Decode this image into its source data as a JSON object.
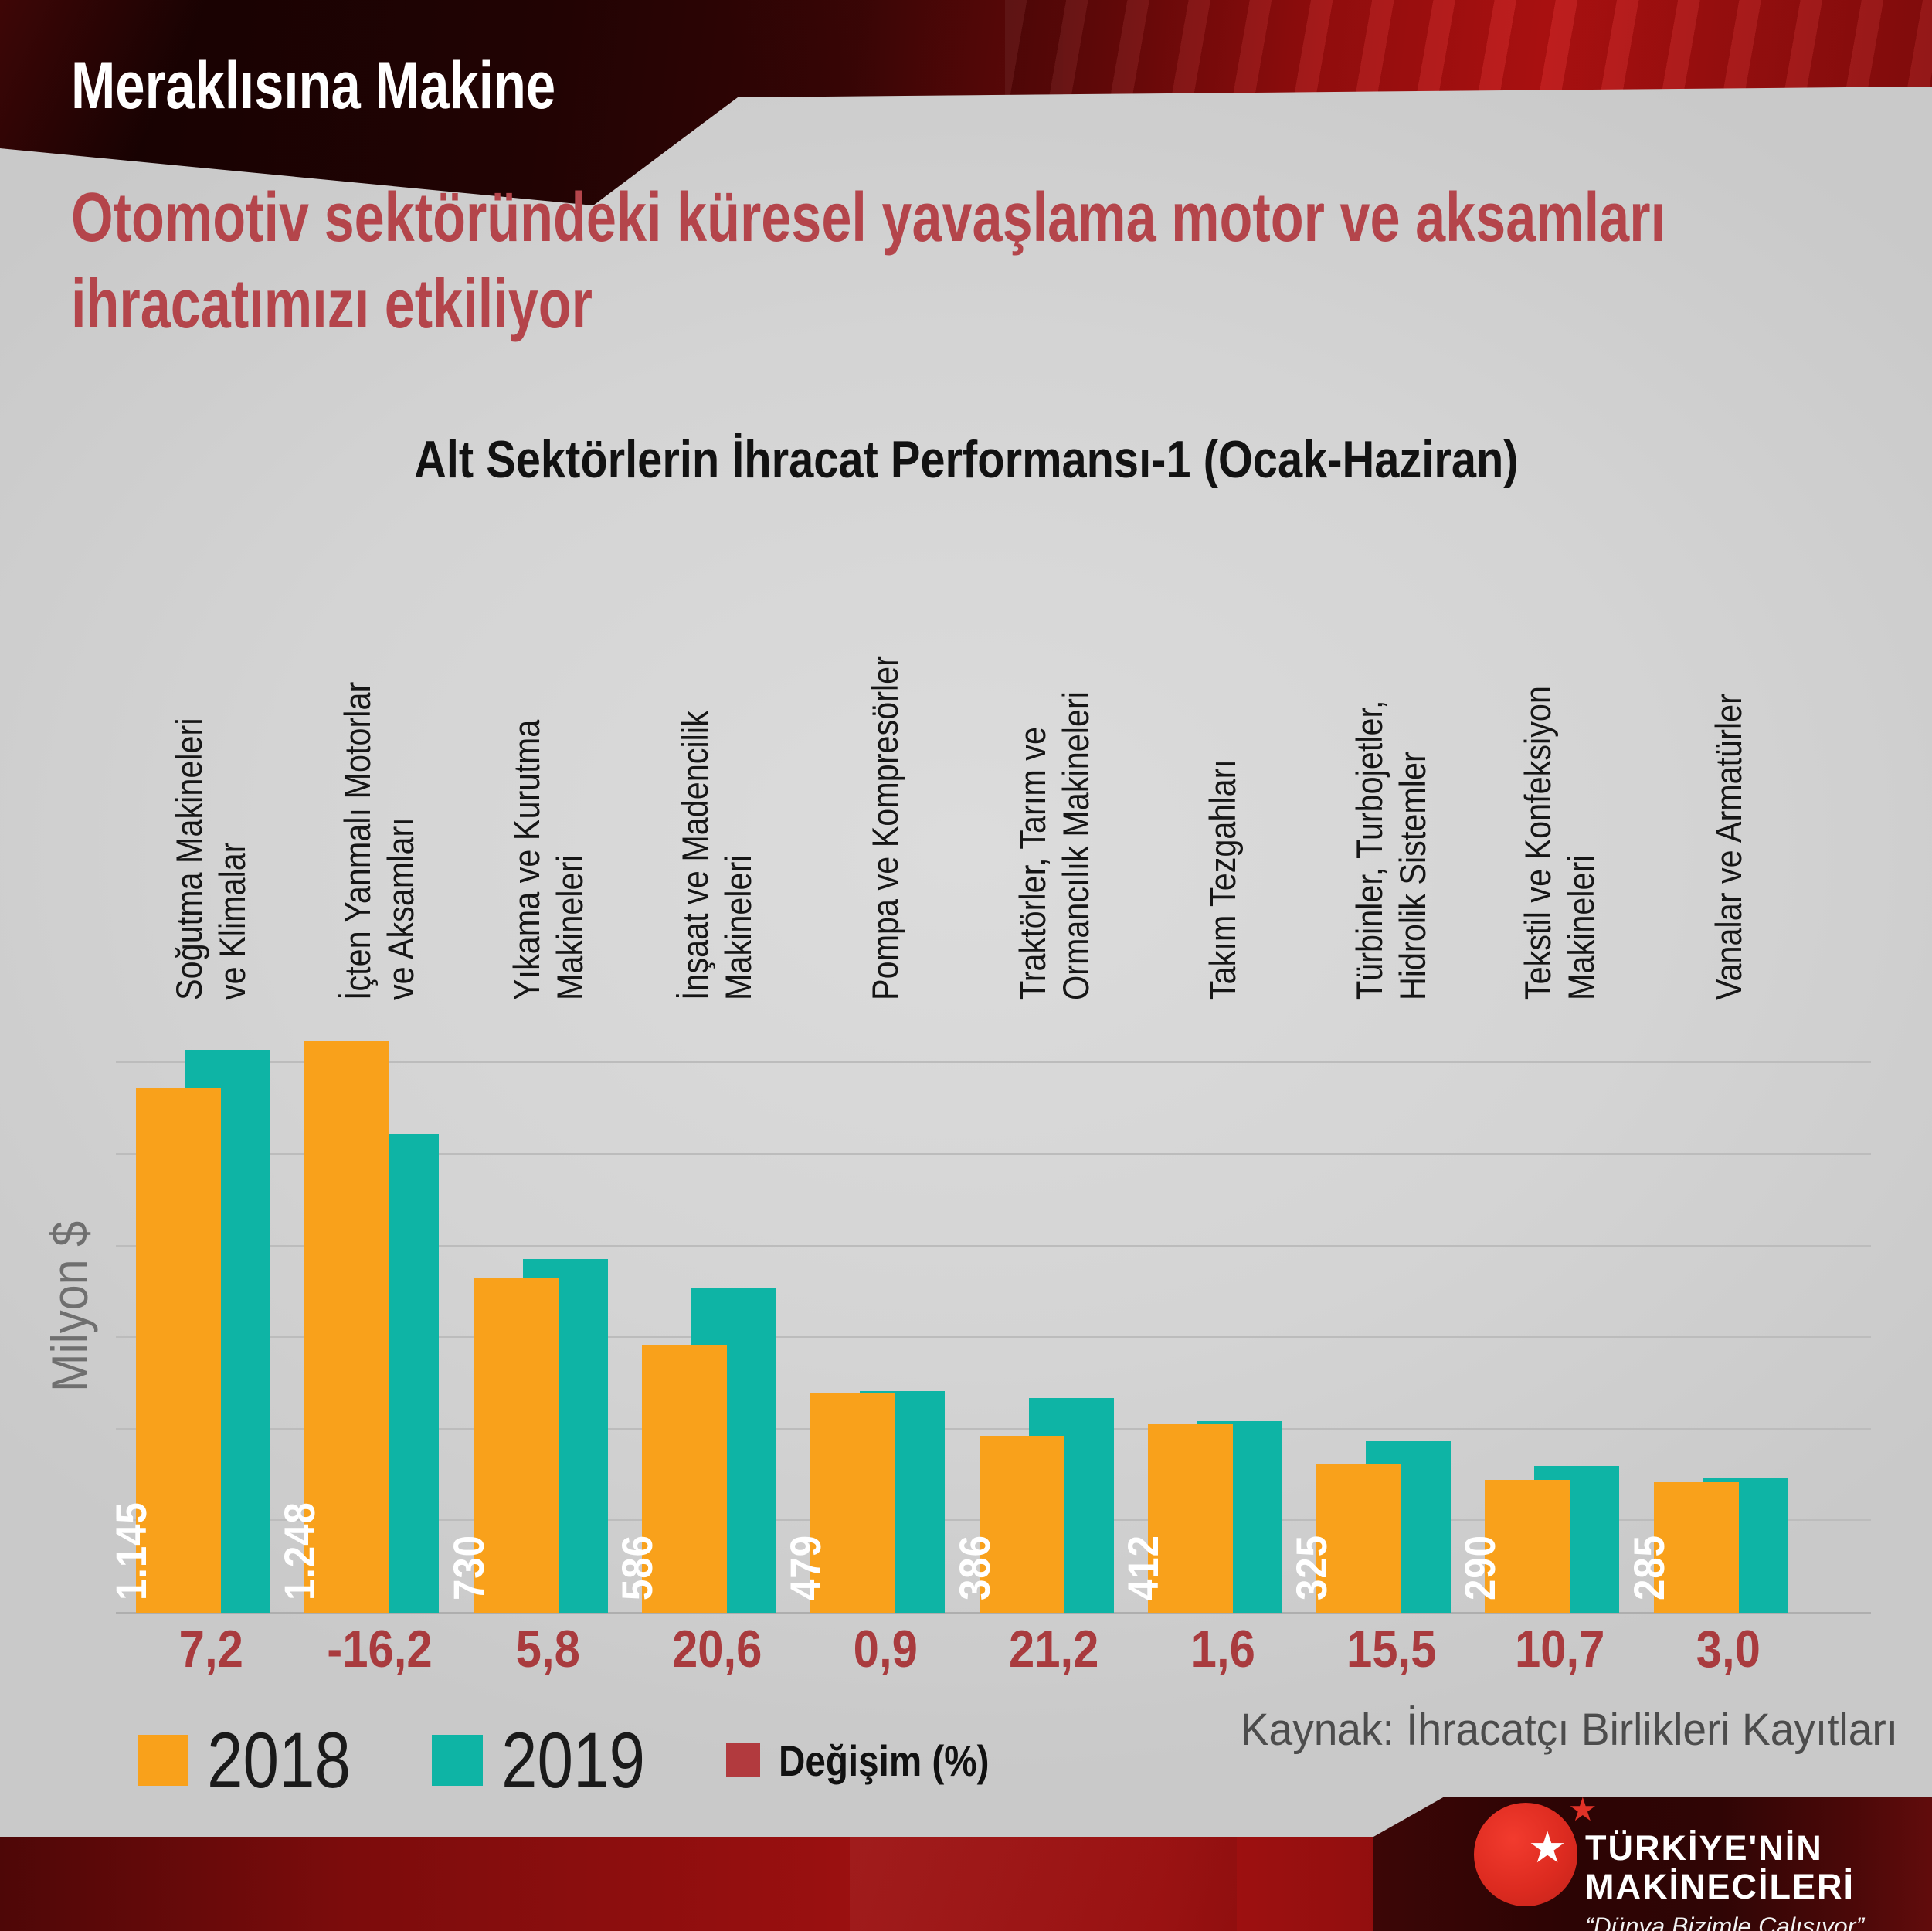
{
  "banner": {
    "brand": "Meraklısına Makine"
  },
  "headline": {
    "line1": "Otomotiv sektöründeki küresel yavaşlama motor ve aksamları",
    "line2": "ihracatımızı etkiliyor",
    "color": "#b4454b"
  },
  "chart": {
    "title": "Alt Sektörlerin İhracat Performansı-1 (Ocak-Haziran)",
    "y_axis_label": "Milyon $",
    "source": "Kaynak: İhracatçı Birlikleri Kayıtları",
    "legend": [
      {
        "label": "2018",
        "color": "#F9A11B"
      },
      {
        "label": "2019",
        "color": "#0EB4A5"
      },
      {
        "label": "Değişim (%)",
        "color": "#B23A3E"
      }
    ]
  },
  "chart_data": {
    "type": "bar",
    "title": "Alt Sektörlerin İhracat Performansı-1 (Ocak-Haziran)",
    "xlabel": "",
    "ylabel": "Milyon $",
    "ylim": [
      0,
      1250
    ],
    "gridlines": [
      200,
      400,
      600,
      800,
      1000,
      1200
    ],
    "grid": true,
    "legend_position": "bottom-left",
    "categories": [
      "Soğutma Makineleri\nve Klimalar",
      "İçten Yanmalı Motorlar\nve Aksamları",
      "Yıkama ve Kurutma\nMakineleri",
      "İnşaat ve Madencilik\nMakineleri",
      "Pompa ve Kompresörler",
      "Traktörler, Tarım ve\nOrmancılık Makineleri",
      "Takım Tezgahları",
      "Türbinler, Turbojetler,\nHidrolik Sistemler",
      "Tekstil ve Konfeksiyon\nMakineleri",
      "Vanalar ve Armatürler"
    ],
    "series": [
      {
        "name": "2018",
        "color": "#F9A11B",
        "values": [
          1145,
          1248,
          730,
          586,
          479,
          386,
          412,
          325,
          290,
          285
        ],
        "labels": [
          "1.145",
          "1.248",
          "730",
          "586",
          "479",
          "386",
          "412",
          "325",
          "290",
          "285"
        ]
      },
      {
        "name": "2019",
        "color": "#0EB4A5",
        "values": [
          1227,
          1045,
          772,
          708,
          484,
          468,
          418,
          376,
          321,
          293
        ],
        "labels": [
          "1.227",
          "1.045",
          "772",
          "708",
          "484",
          "468",
          "418",
          "376",
          "321",
          "293"
        ]
      }
    ],
    "change_row": {
      "name": "Değişim (%)",
      "color": "#A93B3E",
      "labels": [
        "7,2",
        "-16,2",
        "5,8",
        "20,6",
        "0,9",
        "21,2",
        "1,6",
        "15,5",
        "10,7",
        "3,0"
      ]
    }
  },
  "footer": {
    "logo": {
      "line1": "TÜRKİYE'NİN",
      "line2": "MAKİNECİLERİ",
      "tagline": "“Dünya Bizimle Çalışıyor”"
    }
  }
}
